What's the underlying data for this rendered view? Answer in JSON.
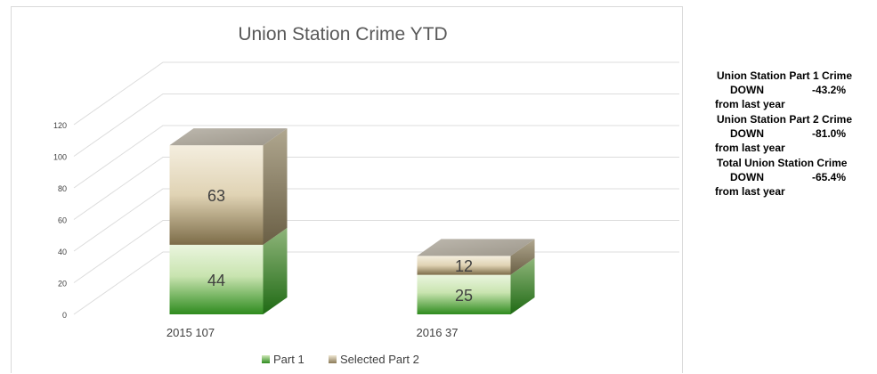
{
  "chart_data": {
    "type": "bar",
    "stacked": true,
    "three_d": true,
    "title": "Union Station Crime YTD",
    "categories": [
      "2015  107",
      "2016  37"
    ],
    "series": [
      {
        "name": "Part 1",
        "values": [
          44,
          25
        ]
      },
      {
        "name": "Selected Part 2",
        "values": [
          63,
          12
        ]
      }
    ],
    "ylim": [
      0,
      120
    ],
    "yticks": [
      "0",
      "20",
      "40",
      "60",
      "80",
      "100",
      "120"
    ],
    "legend_position": "bottom",
    "grid": true
  },
  "colors": {
    "part1_light": "#d8ecc8",
    "part1_dark": "#2e8b1e",
    "part2_light": "#ede4cf",
    "part2_dark": "#8a7a57",
    "top_face": "#aaa49a",
    "side_face": "#8f8b7e",
    "title": "#595959",
    "text": "#404040",
    "grid": "#d9d9d9"
  },
  "stats": [
    {
      "title": "Union Station Part 1 Crime",
      "direction": "DOWN",
      "value": "-43.2%",
      "footer": "from last year"
    },
    {
      "title": "Union Station Part 2 Crime",
      "direction": "DOWN",
      "value": "-81.0%",
      "footer": "from last year"
    },
    {
      "title": "Total Union Station Crime",
      "direction": "DOWN",
      "value": "-65.4%",
      "footer": "from last year"
    }
  ]
}
